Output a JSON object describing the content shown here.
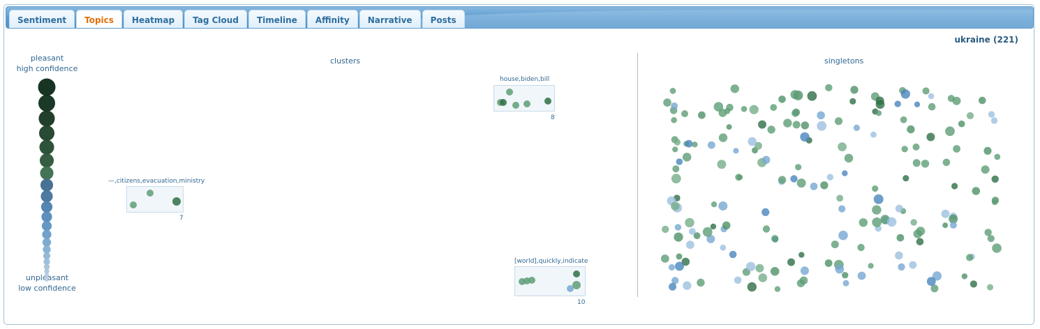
{
  "tabs": [
    {
      "label": "Sentiment",
      "active": false
    },
    {
      "label": "Topics",
      "active": true
    },
    {
      "label": "Heatmap",
      "active": false
    },
    {
      "label": "Tag Cloud",
      "active": false
    },
    {
      "label": "Timeline",
      "active": false
    },
    {
      "label": "Affinity",
      "active": false
    },
    {
      "label": "Narrative",
      "active": false
    },
    {
      "label": "Posts",
      "active": false
    }
  ],
  "title": "ukraine (221)",
  "legend": {
    "top_line1": "pleasant",
    "top_line2": "high confidence",
    "bottom_line1": "unpleasant",
    "bottom_line2": "low confidence"
  },
  "sections": {
    "clusters_label": "clusters",
    "singletons_label": "singletons"
  },
  "clusters": [
    {
      "label": "house,biden,bill",
      "count": "8"
    },
    {
      "label": "—,citizens,evacuation,ministry",
      "count": "7"
    },
    {
      "label": "[world],quickly,indicate",
      "count": "10"
    }
  ],
  "colors": {
    "pleasant_dark": "#0f2e1b",
    "pleasant": "#3a7a55",
    "neutral_green": "#5e9e76",
    "blue": "#4a86bd",
    "light_blue": "#a9c8e4",
    "accent_tab": "#e17009"
  }
}
